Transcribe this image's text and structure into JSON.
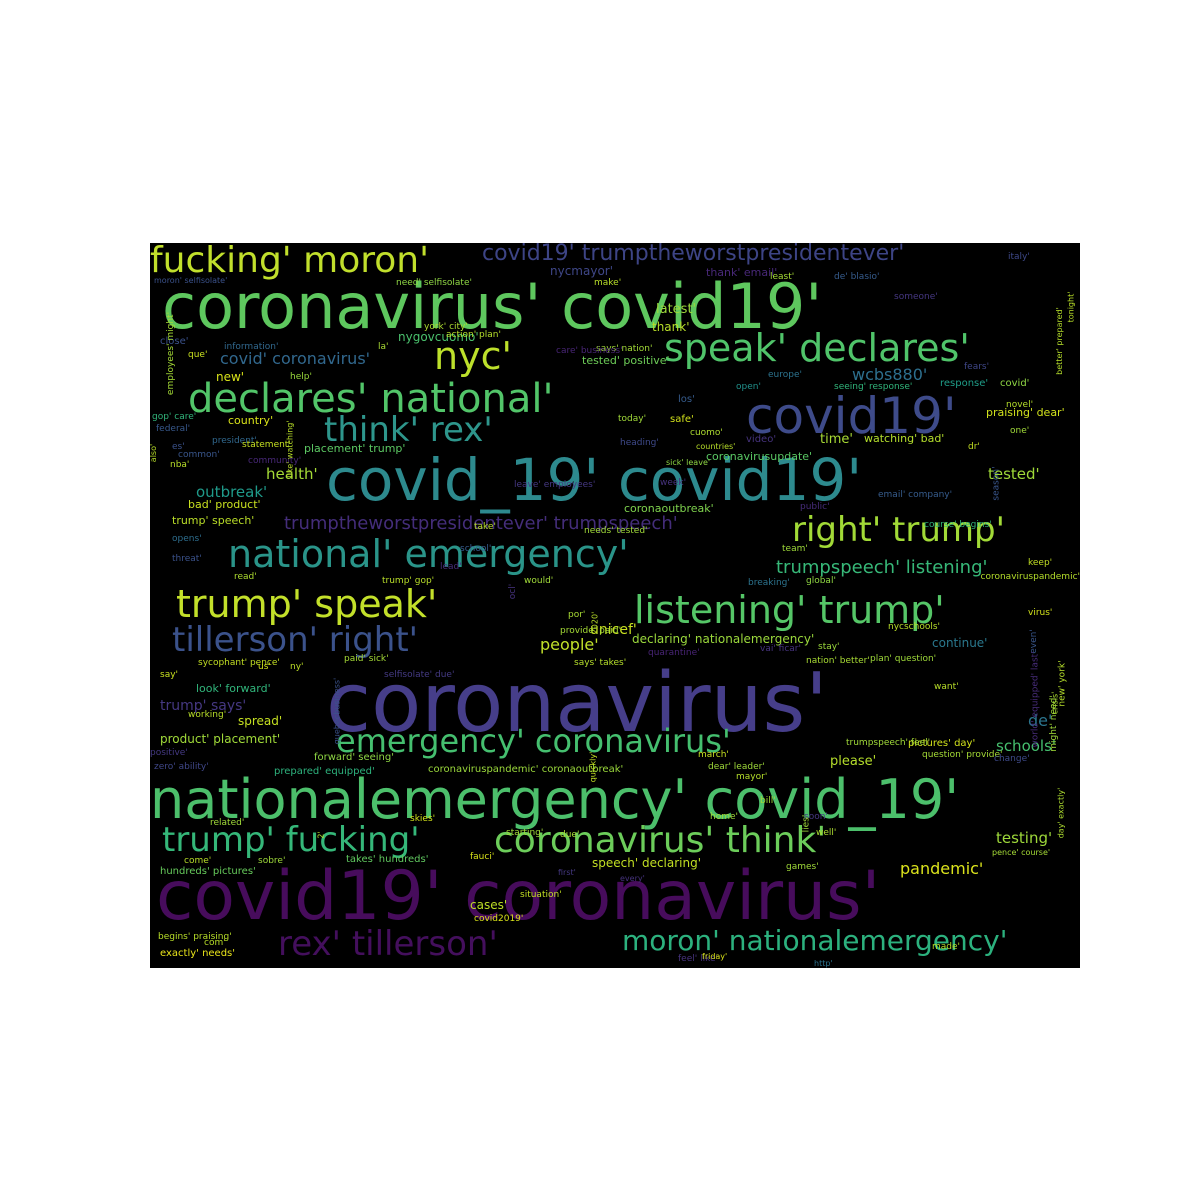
{
  "words": [
    {
      "text": "coronavirus'",
      "color": "#463e8a"
    },
    {
      "text": "covid19' coronavirus'",
      "color": "#470c5c"
    },
    {
      "text": "coronavirus' covid19'",
      "color": "#5ec75e"
    },
    {
      "text": "covid_19' covid19'",
      "color": "#2d8a8e"
    },
    {
      "text": "nationalemergency' covid_19'",
      "color": "#4cbf6b"
    },
    {
      "text": "covid19'",
      "color": "#3e4b8a"
    },
    {
      "text": "declares' national'",
      "color": "#52c569"
    },
    {
      "text": "national' emergency'",
      "color": "#2a9489"
    },
    {
      "text": "speak' declares'",
      "color": "#50c46a"
    },
    {
      "text": "listening' trump'",
      "color": "#55c667"
    },
    {
      "text": "trump' speak'",
      "color": "#c3e02a"
    },
    {
      "text": "fucking' moron'",
      "color": "#c1df2c"
    },
    {
      "text": "nyc'",
      "color": "#bde02b"
    },
    {
      "text": "emergency' coronavirus'",
      "color": "#45bf6f"
    },
    {
      "text": "coronavirus' think'",
      "color": "#6ccd5a"
    },
    {
      "text": "trump' fucking'",
      "color": "#35b779"
    },
    {
      "text": "moron' nationalemergency'",
      "color": "#2cb17e"
    },
    {
      "text": "rex' tillerson'",
      "color": "#440f5d"
    },
    {
      "text": "tillerson' right'",
      "color": "#3b528b"
    },
    {
      "text": "think' rex'",
      "color": "#2e968c"
    },
    {
      "text": "right' trump'",
      "color": "#a2da37"
    },
    {
      "text": "covid19' trumptheworstpresidentever'",
      "color": "#3d4485"
    },
    {
      "text": "trumptheworstpresidentever' trumpspeech'",
      "color": "#442d7a"
    },
    {
      "text": "trumpspeech' listening'",
      "color": "#37b878"
    },
    {
      "text": "pandemic'",
      "color": "#dbe31c"
    },
    {
      "text": "covid' coronavirus'",
      "color": "#31688e"
    },
    {
      "text": "wcbs880'",
      "color": "#2d6f8e"
    },
    {
      "text": "outbreak'",
      "color": "#1f9a8a"
    },
    {
      "text": "people'",
      "color": "#c0e02a"
    },
    {
      "text": "unicef'",
      "color": "#c8e020"
    },
    {
      "text": "health'",
      "color": "#a5db36"
    },
    {
      "text": "tested'",
      "color": "#9fd938"
    },
    {
      "text": "testing'",
      "color": "#9ed93a"
    },
    {
      "text": "schools'",
      "color": "#46c06f"
    },
    {
      "text": "trump' says'",
      "color": "#453882"
    },
    {
      "text": "nygovcuomo'",
      "color": "#4ac16d"
    },
    {
      "text": "nycmayor'",
      "color": "#3f4788"
    },
    {
      "text": "thank'",
      "color": "#b8de29"
    },
    {
      "text": "latest'",
      "color": "#9dd93b"
    },
    {
      "text": "time'",
      "color": "#a8db34"
    },
    {
      "text": "please'",
      "color": "#b5de2b"
    },
    {
      "text": "de'",
      "color": "#2b758e"
    },
    {
      "text": "new'",
      "color": "#d8e219"
    },
    {
      "text": "continue'",
      "color": "#2a788e"
    },
    {
      "text": "cases'",
      "color": "#bddf26"
    },
    {
      "text": "spread'",
      "color": "#c5e021"
    },
    {
      "text": "look' forward'",
      "color": "#31b57b"
    },
    {
      "text": "product' placement'",
      "color": "#a0da39"
    },
    {
      "text": "declaring' nationalemergency'",
      "color": "#9bd93c"
    },
    {
      "text": "speech' declaring'",
      "color": "#c2df23"
    },
    {
      "text": "tested' positive'",
      "color": "#6ece58"
    },
    {
      "text": "coronavirusupdate'",
      "color": "#5ac864"
    },
    {
      "text": "coronaoutbreak'",
      "color": "#7fd34e"
    },
    {
      "text": "placement' trump'",
      "color": "#5cc863"
    },
    {
      "text": "trump' speech'",
      "color": "#bade28"
    },
    {
      "text": "bad' product'",
      "color": "#c9e120"
    },
    {
      "text": "watching' bad'",
      "color": "#b4de2c"
    },
    {
      "text": "praising' dear'",
      "color": "#d0e11c"
    },
    {
      "text": "coronaviruspandemic' coronaoutbreak'",
      "color": "#9bd93c"
    },
    {
      "text": "hundreds' pictures'",
      "color": "#67cc5c"
    },
    {
      "text": "takes' hundreds'",
      "color": "#61c960"
    },
    {
      "text": "pictures' day'",
      "color": "#d2e21b"
    },
    {
      "text": "forward' seeing'",
      "color": "#8fd744"
    },
    {
      "text": "prepared' equipped'",
      "color": "#2db27d"
    },
    {
      "text": "exactly' needs'",
      "color": "#eae51a"
    },
    {
      "text": "begins' praising'",
      "color": "#b8de29"
    },
    {
      "text": "business' economy'",
      "color": "#94d741"
    },
    {
      "text": "moron' selfisolate'",
      "color": "#3b528b"
    },
    {
      "text": "need' selfisolate'",
      "color": "#8fd744"
    },
    {
      "text": "action' plan'",
      "color": "#b5de2b"
    },
    {
      "text": "says' nation'",
      "color": "#a2da37"
    },
    {
      "text": "york' city'",
      "color": "#addc30"
    },
    {
      "text": "make'",
      "color": "#b8de29"
    },
    {
      "text": "thank' email'",
      "color": "#482878"
    },
    {
      "text": "least'",
      "color": "#a5db36"
    },
    {
      "text": "de' blasio'",
      "color": "#365c8d"
    },
    {
      "text": "italy'",
      "color": "#3e4989"
    },
    {
      "text": "someone'",
      "color": "#453781"
    },
    {
      "text": "fears'",
      "color": "#3f4788"
    },
    {
      "text": "information'",
      "color": "#31688e"
    },
    {
      "text": "la'",
      "color": "#a8db34"
    },
    {
      "text": "close'",
      "color": "#3b528b"
    },
    {
      "text": "que'",
      "color": "#c8e020"
    },
    {
      "text": "help'",
      "color": "#9bd93c"
    },
    {
      "text": "care' business'",
      "color": "#482576"
    },
    {
      "text": "europe'",
      "color": "#2c738e"
    },
    {
      "text": "open'",
      "color": "#21918c"
    },
    {
      "text": "seeing' response'",
      "color": "#31b57b"
    },
    {
      "text": "response'",
      "color": "#1f9e89"
    },
    {
      "text": "covid'",
      "color": "#8fd744"
    },
    {
      "text": "novel'",
      "color": "#b5de2b"
    },
    {
      "text": "los'",
      "color": "#365c8d"
    },
    {
      "text": "safe'",
      "color": "#d2e21b"
    },
    {
      "text": "today'",
      "color": "#a0da39"
    },
    {
      "text": "cuomo'",
      "color": "#addc30"
    },
    {
      "text": "heading'",
      "color": "#3e4989"
    },
    {
      "text": "countries'",
      "color": "#b8de29"
    },
    {
      "text": "video'",
      "color": "#46337e"
    },
    {
      "text": "dr'",
      "color": "#c2df23"
    },
    {
      "text": "one'",
      "color": "#a0da39"
    },
    {
      "text": "gop' care'",
      "color": "#31b57b"
    },
    {
      "text": "federal'",
      "color": "#38598c"
    },
    {
      "text": "country'",
      "color": "#d8e219"
    },
    {
      "text": "president'",
      "color": "#31688e"
    },
    {
      "text": "es'",
      "color": "#3b528b"
    },
    {
      "text": "common'",
      "color": "#39568c"
    },
    {
      "text": "statement'",
      "color": "#c5e021"
    },
    {
      "text": "nba'",
      "color": "#b8de29"
    },
    {
      "text": "community'",
      "color": "#482878"
    },
    {
      "text": "sick' leave'",
      "color": "#8fd744"
    },
    {
      "text": "week'",
      "color": "#46337e"
    },
    {
      "text": "public'",
      "color": "#472c7a"
    },
    {
      "text": "email' company'",
      "color": "#365c8d"
    },
    {
      "text": "leave' employees'",
      "color": "#453882"
    },
    {
      "text": "opens'",
      "color": "#2e6e8e"
    },
    {
      "text": "take'",
      "color": "#b8de29"
    },
    {
      "text": "needs' tested'",
      "color": "#a0da39"
    },
    {
      "text": "course' begins'",
      "color": "#31b57b"
    },
    {
      "text": "team'",
      "color": "#9fda3a"
    },
    {
      "text": "school'",
      "color": "#365c8d"
    },
    {
      "text": "lead'",
      "color": "#472d7b"
    },
    {
      "text": "threat'",
      "color": "#3b528b"
    },
    {
      "text": "read'",
      "color": "#addc30"
    },
    {
      "text": "trump' gop'",
      "color": "#b8de29"
    },
    {
      "text": "would'",
      "color": "#a0da39"
    },
    {
      "text": "breaking'",
      "color": "#2c738e"
    },
    {
      "text": "global'",
      "color": "#90d743"
    },
    {
      "text": "coronaviruspandemic'",
      "color": "#b5de2b"
    },
    {
      "text": "keep'",
      "color": "#c2df23"
    },
    {
      "text": "virus'",
      "color": "#d2e21b"
    },
    {
      "text": "por'",
      "color": "#a8db34"
    },
    {
      "text": "provide' paid'",
      "color": "#a5db36"
    },
    {
      "text": "nycschools'",
      "color": "#b8de29"
    },
    {
      "text": "quarantine'",
      "color": "#482475"
    },
    {
      "text": "stay'",
      "color": "#9bd93c"
    },
    {
      "text": "vai' ficar'",
      "color": "#46337e"
    },
    {
      "text": "nation' better'",
      "color": "#a8db34"
    },
    {
      "text": "plan' question'",
      "color": "#9fda3a"
    },
    {
      "text": "says' takes'",
      "color": "#b5de2b"
    },
    {
      "text": "sycophant' pence'",
      "color": "#c2df23"
    },
    {
      "text": "say'",
      "color": "#c8e020"
    },
    {
      "text": "us'",
      "color": "#d2e21b"
    },
    {
      "text": "ny'",
      "color": "#bddf26"
    },
    {
      "text": "paid' sick'",
      "color": "#a5db36"
    },
    {
      "text": "selfisolate' due'",
      "color": "#443a83"
    },
    {
      "text": "want'",
      "color": "#b8de29"
    },
    {
      "text": "working'",
      "color": "#b8de29"
    },
    {
      "text": "positive'",
      "color": "#443983"
    },
    {
      "text": "zero' ability'",
      "color": "#3f4788"
    },
    {
      "text": "march'",
      "color": "#c5e021"
    },
    {
      "text": "dear' leader'",
      "color": "#9fda3a"
    },
    {
      "text": "trumpspeech' feel'",
      "color": "#a0da39"
    },
    {
      "text": "question' provide'",
      "color": "#a5db36"
    },
    {
      "text": "change'",
      "color": "#3e4a89"
    },
    {
      "text": "mayor'",
      "color": "#b5de2b"
    },
    {
      "text": "bill'",
      "color": "#a5db36"
    },
    {
      "text": "home'",
      "color": "#a0da39"
    },
    {
      "text": "soon'",
      "color": "#453882"
    },
    {
      "text": "well'",
      "color": "#addc30"
    },
    {
      "text": "related'",
      "color": "#a0da39"
    },
    {
      "text": "skies'",
      "color": "#d2e21b"
    },
    {
      "text": "starting'",
      "color": "#a0da39"
    },
    {
      "text": "due'",
      "color": "#a5db36"
    },
    {
      "text": "come'",
      "color": "#b8de29"
    },
    {
      "text": "sobre'",
      "color": "#9fda3a"
    },
    {
      "text": "fauci'",
      "color": "#d8e219"
    },
    {
      "text": "first'",
      "color": "#453882"
    },
    {
      "text": "every'",
      "color": "#46337e"
    },
    {
      "text": "games'",
      "color": "#a0da39"
    },
    {
      "text": "pence' course'",
      "color": "#a5db36"
    },
    {
      "text": "situation'",
      "color": "#c2df23"
    },
    {
      "text": "covid2019'",
      "color": "#d8e219"
    },
    {
      "text": "com'",
      "color": "#b8de29"
    },
    {
      "text": "feel' like'",
      "color": "#46337e"
    },
    {
      "text": "friday'",
      "color": "#d8e219"
    },
    {
      "text": "http'",
      "color": "#2c738e"
    },
    {
      "text": "made'",
      "color": "#b5de2b"
    },
    {
      "text": "employees' might'",
      "color": "#a5db36"
    },
    {
      "text": "also'",
      "color": "#b8de29"
    },
    {
      "text": "like' watching'",
      "color": "#b8de29"
    },
    {
      "text": "season'",
      "color": "#39568c"
    },
    {
      "text": "even'",
      "color": "#39568c"
    },
    {
      "text": "new' york'",
      "color": "#b5de2b"
    },
    {
      "text": "crisis'",
      "color": "#addc30"
    },
    {
      "text": "tonight'",
      "color": "#b8de29"
    },
    {
      "text": "better' prepared'",
      "color": "#b5de2b"
    },
    {
      "text": "might' need'",
      "color": "#a0da39"
    },
    {
      "text": "world' equipped' last'",
      "color": "#472c7a"
    },
    {
      "text": "day' exactly'",
      "color": "#addc30"
    },
    {
      "text": "quebecbusiness'",
      "color": "#3b528b"
    },
    {
      "text": "ocl'",
      "color": "#46337e"
    },
    {
      "text": "2020'",
      "color": "#b8de29"
    },
    {
      "text": "lies'",
      "color": "#a0da39"
    },
    {
      "text": "2'",
      "color": "#b5de2b"
    },
    {
      "text": "quickly'",
      "color": "#c2df23"
    },
    {
      "text": "china'",
      "color": "#b5de2b"
    },
    {
      "text": "anyone'",
      "color": "#3e4a89"
    }
  ]
}
